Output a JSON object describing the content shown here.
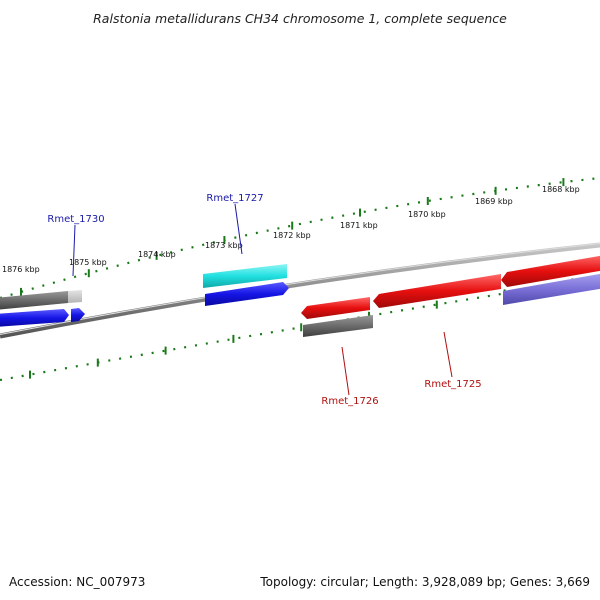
{
  "title": "Ralstonia metallidurans CH34 chromosome 1, complete sequence",
  "footer": {
    "accession": "Accession: NC_007973",
    "summary": "Topology: circular; Length: 3,928,089 bp; Genes: 3,669"
  },
  "colors": {
    "backbone": "#8a8a8a",
    "ticks": "#1a7a1a",
    "plus_label": "#1a1aa8",
    "minus_label": "#b01010",
    "blue_gene": "#1515e6",
    "red_gene": "#e60f0f",
    "cyan_gene": "#22e0e0",
    "gray_gene": "#6b6b6b",
    "light_gray_gene": "#c8c8c8",
    "lavender_gene": "#7a70d8"
  },
  "scale": {
    "unit": "kbp",
    "labels": [
      "1876 kbp",
      "1875 kbp",
      "1874 kbp",
      "1873 kbp",
      "1872 kbp",
      "1871 kbp",
      "1870 kbp",
      "1869 kbp",
      "1868 kbp"
    ]
  },
  "gene_labels": [
    {
      "name": "Rmet_1730",
      "strand": "plus"
    },
    {
      "name": "Rmet_1727",
      "strand": "plus"
    },
    {
      "name": "Rmet_1726",
      "strand": "minus"
    },
    {
      "name": "Rmet_1725",
      "strand": "minus"
    }
  ]
}
